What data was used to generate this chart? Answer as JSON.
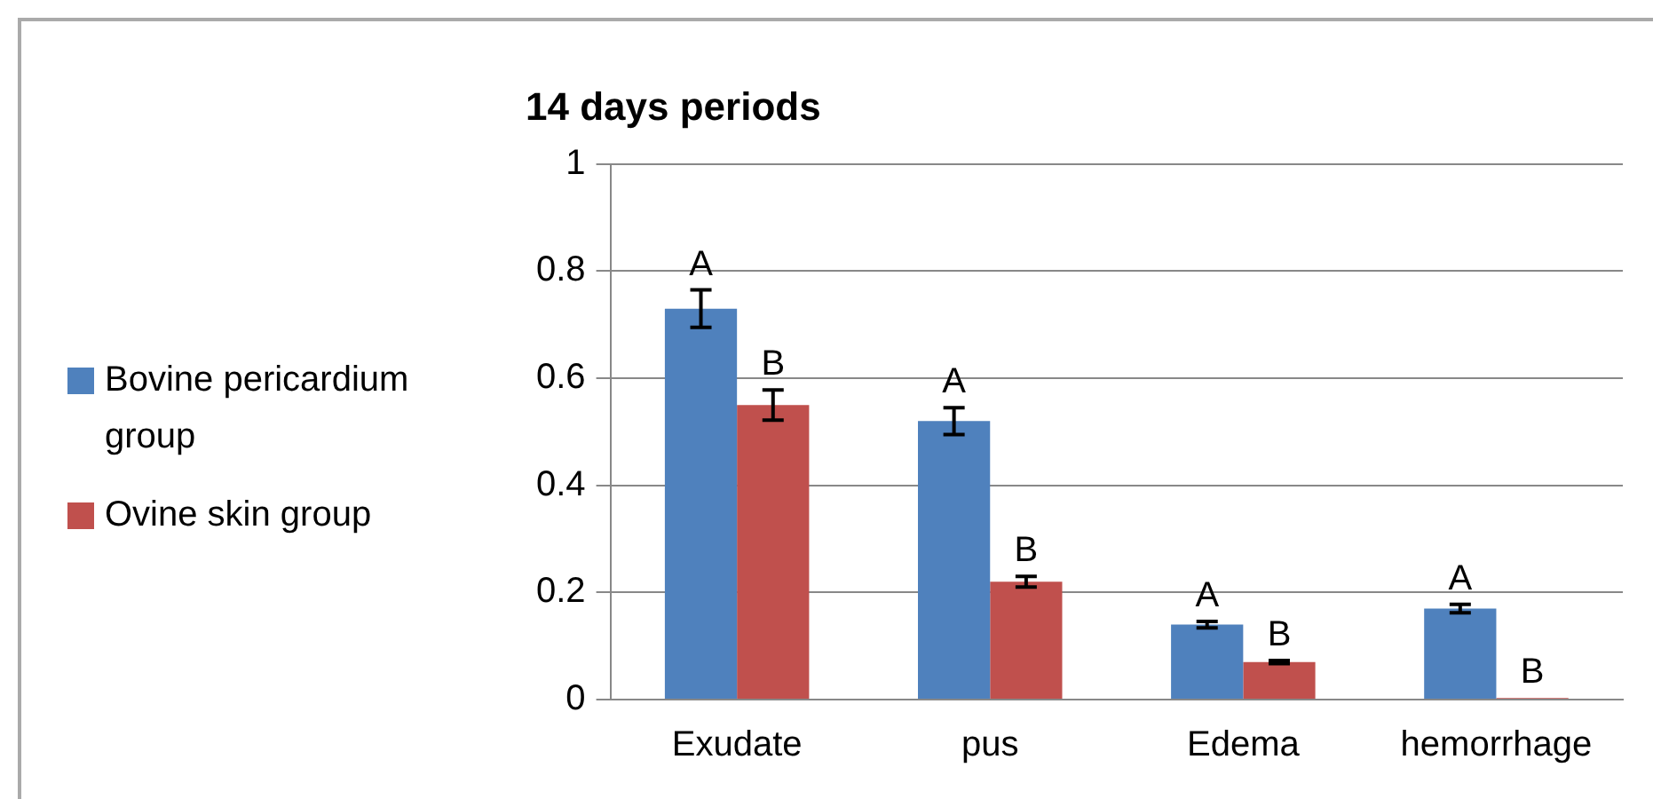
{
  "chart_data": {
    "type": "bar",
    "title": "14 days periods",
    "categories": [
      "Exudate",
      "pus",
      "Edema",
      "hemorrhage"
    ],
    "series": [
      {
        "name": "Bovine pericardium group",
        "color": "#4f81bd",
        "values": [
          0.73,
          0.52,
          0.14,
          0.17
        ],
        "errors": [
          0.035,
          0.025,
          0.006,
          0.008
        ],
        "value_labels": [
          "A",
          "A",
          "A",
          "A"
        ]
      },
      {
        "name": "Ovine skin group",
        "color": "#c0504d",
        "values": [
          0.55,
          0.22,
          0.07,
          0.003
        ],
        "errors": [
          0.028,
          0.01,
          0.003,
          null
        ],
        "value_labels": [
          "B",
          "B",
          "B",
          "B"
        ]
      }
    ],
    "ylim": [
      0,
      1
    ],
    "yticks": [
      0,
      0.2,
      0.4,
      0.6,
      0.8,
      1
    ],
    "grid": "y",
    "legend": "left"
  }
}
